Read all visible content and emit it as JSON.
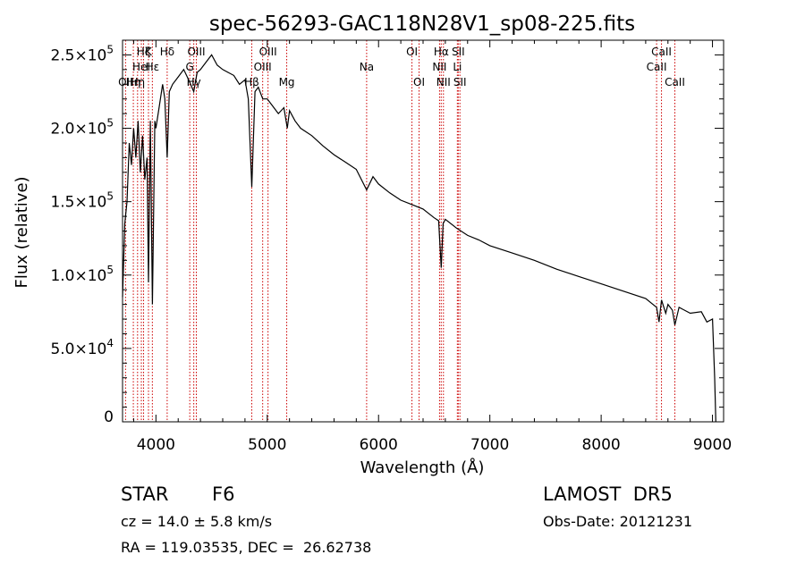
{
  "chart_data": {
    "type": "line",
    "title": "spec-56293-GAC118N28V1_sp08-225.fits",
    "xlabel": "Wavelength (Å)",
    "ylabel": "Flux (relative)",
    "xlim": [
      3700,
      9100
    ],
    "ylim": [
      0,
      260000
    ],
    "x_ticks": [
      {
        "v": 4000,
        "label": "4000"
      },
      {
        "v": 5000,
        "label": "5000"
      },
      {
        "v": 6000,
        "label": "6000"
      },
      {
        "v": 7000,
        "label": "7000"
      },
      {
        "v": 8000,
        "label": "8000"
      },
      {
        "v": 9000,
        "label": "9000"
      }
    ],
    "y_ticks": [
      {
        "v": 0,
        "label": "0"
      },
      {
        "v": 50000,
        "label": "5.0×10",
        "exp": "4"
      },
      {
        "v": 100000,
        "label": "1.0×10",
        "exp": "5"
      },
      {
        "v": 150000,
        "label": "1.5×10",
        "exp": "5"
      },
      {
        "v": 200000,
        "label": "2.0×10",
        "exp": "5"
      },
      {
        "v": 250000,
        "label": "2.5×10",
        "exp": "5"
      }
    ],
    "grid": false,
    "line_color": "#000000",
    "marker_color": "#cc0000",
    "series": [
      {
        "x": [
          3700,
          3720,
          3740,
          3760,
          3780,
          3800,
          3820,
          3840,
          3860,
          3880,
          3900,
          3920,
          3933,
          3950,
          3968,
          3990,
          4000,
          4030,
          4060,
          4080,
          4101,
          4120,
          4150,
          4200,
          4250,
          4300,
          4340,
          4370,
          4400,
          4450,
          4500,
          4550,
          4600,
          4650,
          4700,
          4750,
          4800,
          4830,
          4861,
          4890,
          4920,
          4960,
          5000,
          5050,
          5100,
          5150,
          5180,
          5200,
          5250,
          5300,
          5400,
          5500,
          5600,
          5700,
          5800,
          5893,
          5950,
          6000,
          6100,
          6200,
          6300,
          6400,
          6450,
          6500,
          6540,
          6563,
          6580,
          6600,
          6700,
          6800,
          6900,
          7000,
          7200,
          7400,
          7600,
          7800,
          8000,
          8200,
          8400,
          8498,
          8520,
          8542,
          8580,
          8600,
          8640,
          8662,
          8700,
          8800,
          8900,
          8950,
          9000,
          9020,
          9030
        ],
        "y": [
          85000,
          135000,
          150000,
          190000,
          175000,
          200000,
          180000,
          205000,
          170000,
          195000,
          165000,
          180000,
          95000,
          205000,
          80000,
          205000,
          200000,
          215000,
          230000,
          220000,
          180000,
          225000,
          230000,
          235000,
          240000,
          232000,
          225000,
          238000,
          240000,
          245000,
          250000,
          243000,
          240000,
          238000,
          236000,
          230000,
          233000,
          220000,
          160000,
          225000,
          228000,
          220000,
          220000,
          215000,
          210000,
          214000,
          200000,
          212000,
          205000,
          200000,
          195000,
          188000,
          182000,
          177000,
          172000,
          158000,
          167000,
          162000,
          156000,
          151000,
          148000,
          145000,
          142000,
          139000,
          137000,
          105000,
          135000,
          138000,
          132000,
          127000,
          124000,
          120000,
          115000,
          110000,
          104000,
          99000,
          94000,
          89000,
          84000,
          78000,
          68000,
          83000,
          74000,
          80000,
          76000,
          66000,
          78000,
          74000,
          75000,
          68000,
          70000,
          30000,
          0
        ]
      }
    ],
    "line_markers": [
      {
        "x": 3727,
        "label": "OII",
        "row": 3
      },
      {
        "x": 3797,
        "label": "Hη",
        "row": 3
      },
      {
        "x": 3835,
        "label": "Hη",
        "row": 3
      },
      {
        "x": 3869,
        "label": "HeI",
        "row": 2
      },
      {
        "x": 3889,
        "label": "Hζ",
        "row": 1
      },
      {
        "x": 3933,
        "label": "K",
        "row": 1
      },
      {
        "x": 3968,
        "label": "Hε",
        "row": 2
      },
      {
        "x": 4101,
        "label": "Hδ",
        "row": 1
      },
      {
        "x": 4304,
        "label": "G",
        "row": 2
      },
      {
        "x": 4340,
        "label": "Hγ",
        "row": 3
      },
      {
        "x": 4363,
        "label": "OIII",
        "row": 1
      },
      {
        "x": 4861,
        "label": "Hβ",
        "row": 3
      },
      {
        "x": 4959,
        "label": "OIII",
        "row": 2
      },
      {
        "x": 5007,
        "label": "OIII",
        "row": 1
      },
      {
        "x": 5175,
        "label": "Mg",
        "row": 3
      },
      {
        "x": 5893,
        "label": "Na",
        "row": 2
      },
      {
        "x": 6300,
        "label": "OI",
        "row": 1
      },
      {
        "x": 6364,
        "label": "OI",
        "row": 3
      },
      {
        "x": 6548,
        "label": "NII",
        "row": 2
      },
      {
        "x": 6563,
        "label": "Hα",
        "row": 1
      },
      {
        "x": 6583,
        "label": "NII",
        "row": 3
      },
      {
        "x": 6708,
        "label": "Li",
        "row": 2
      },
      {
        "x": 6716,
        "label": "SII",
        "row": 1
      },
      {
        "x": 6731,
        "label": "SII",
        "row": 3
      },
      {
        "x": 8498,
        "label": "CaII",
        "row": 2
      },
      {
        "x": 8542,
        "label": "CaII",
        "row": 1
      },
      {
        "x": 8662,
        "label": "CaII",
        "row": 3
      }
    ]
  },
  "info": {
    "class": "STAR",
    "subclass": "F6",
    "survey": "LAMOST  DR5",
    "cz": "cz = 14.0 ± 5.8 km/s",
    "obs_date": "Obs-Date: 20121231",
    "radec": "RA = 119.03535, DEC =  26.62738"
  }
}
